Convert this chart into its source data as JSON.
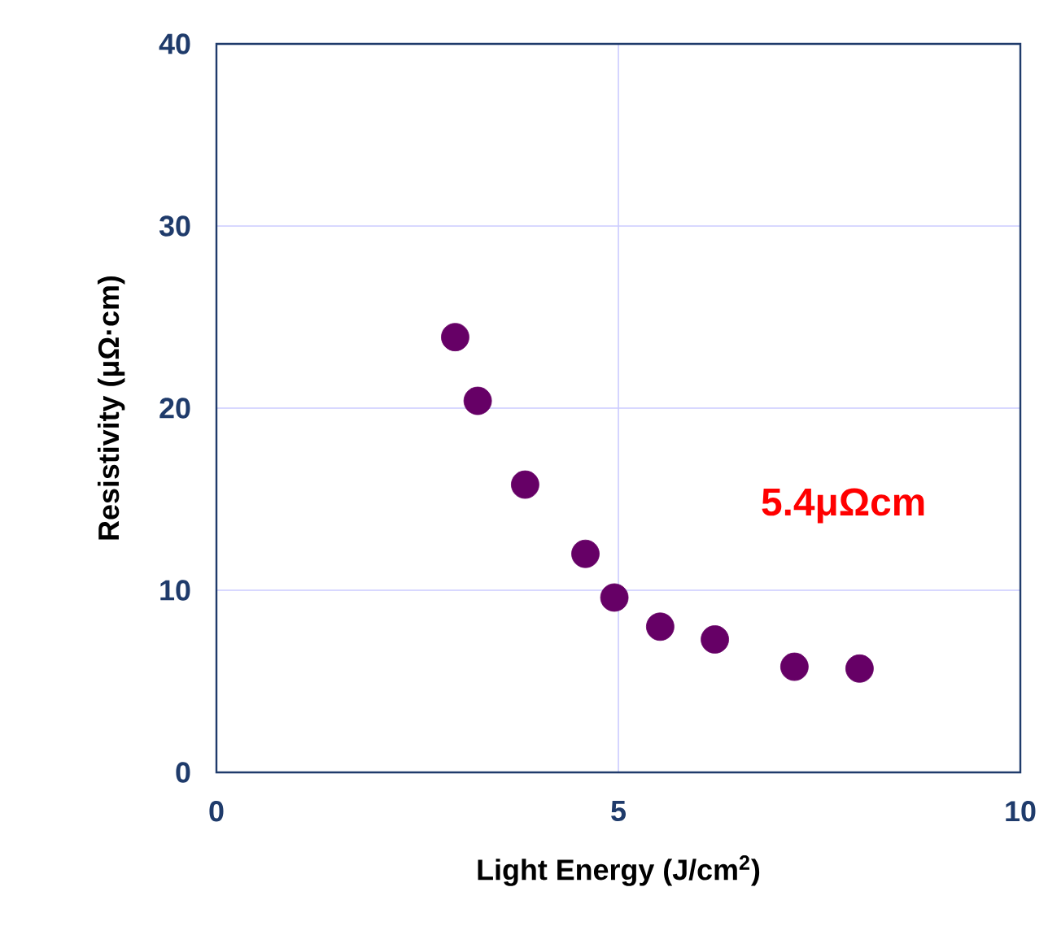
{
  "chart_data": {
    "type": "scatter",
    "xlabel": "Light Energy (J/cm$^{2}$)",
    "ylabel": "Resistivity (μΩ·cm)",
    "x": [
      2.97,
      3.25,
      3.84,
      4.59,
      4.95,
      5.52,
      6.2,
      7.19,
      8.0
    ],
    "series": [
      {
        "color": "#660066",
        "values": [
          23.9,
          20.4,
          15.8,
          12.0,
          9.6,
          8.0,
          7.3,
          5.8,
          5.7
        ]
      }
    ],
    "xlim": [
      0,
      10
    ],
    "ylim": [
      0,
      40
    ],
    "xticks": [
      0,
      5,
      10
    ],
    "yticks": [
      0,
      10,
      20,
      30,
      40
    ],
    "grid": true,
    "marker": "circle",
    "annotations": [
      "5.4μΩcm"
    ]
  }
}
